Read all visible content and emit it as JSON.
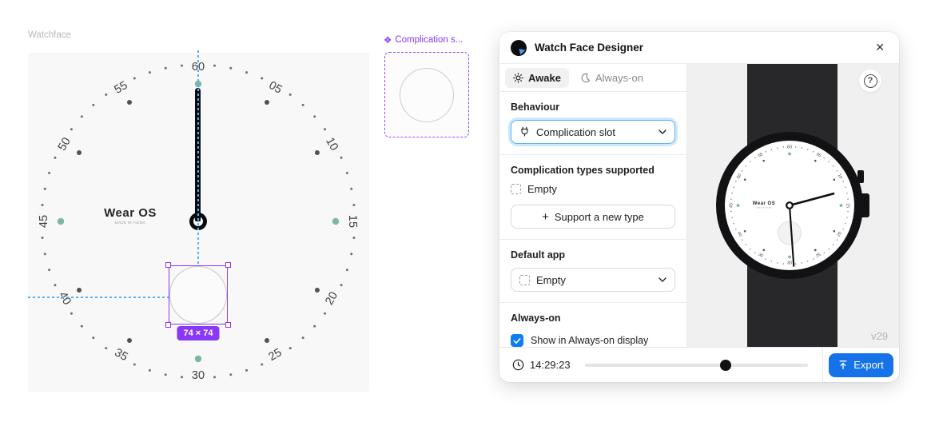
{
  "canvas": {
    "frame_label": "Watchface",
    "dial": {
      "numbers": [
        "05",
        "10",
        "15",
        "20",
        "25",
        "30",
        "35",
        "40",
        "45",
        "50",
        "55",
        "60"
      ],
      "brand": "Wear OS",
      "brand_sub": "MADE IN FIGMA",
      "dot_color": "#6f6f75",
      "five_dot_color": "#515157",
      "quarter_color": "#7cb8a2",
      "number_color": "#3f3f46"
    },
    "selection": {
      "size_badge": "74 × 74"
    },
    "component": {
      "icon": "❖",
      "label": "Complication s..."
    }
  },
  "panel": {
    "title": "Watch Face Designer",
    "close_icon": "✕",
    "tabs": [
      {
        "label": "Awake",
        "icon": "sun",
        "active": true
      },
      {
        "label": "Always-on",
        "icon": "moon",
        "active": false
      }
    ],
    "sections": {
      "behaviour": {
        "label": "Behaviour",
        "value": "Complication slot"
      },
      "types": {
        "label": "Complication types supported",
        "items": [
          {
            "label": "Empty"
          }
        ],
        "add_plus": "+",
        "add_label": "Support a new type"
      },
      "default_app": {
        "label": "Default app",
        "value": "Empty"
      },
      "always_on": {
        "label": "Always-on",
        "checkbox_label": "Show in Always-on display",
        "checked": true
      }
    },
    "preview": {
      "version": "v29",
      "help_glyph": "?",
      "hour_angle": 75,
      "minute_angle": 176
    },
    "footer": {
      "time": "14:29:23",
      "slider_pos": 0.63,
      "export_label": "Export"
    }
  }
}
